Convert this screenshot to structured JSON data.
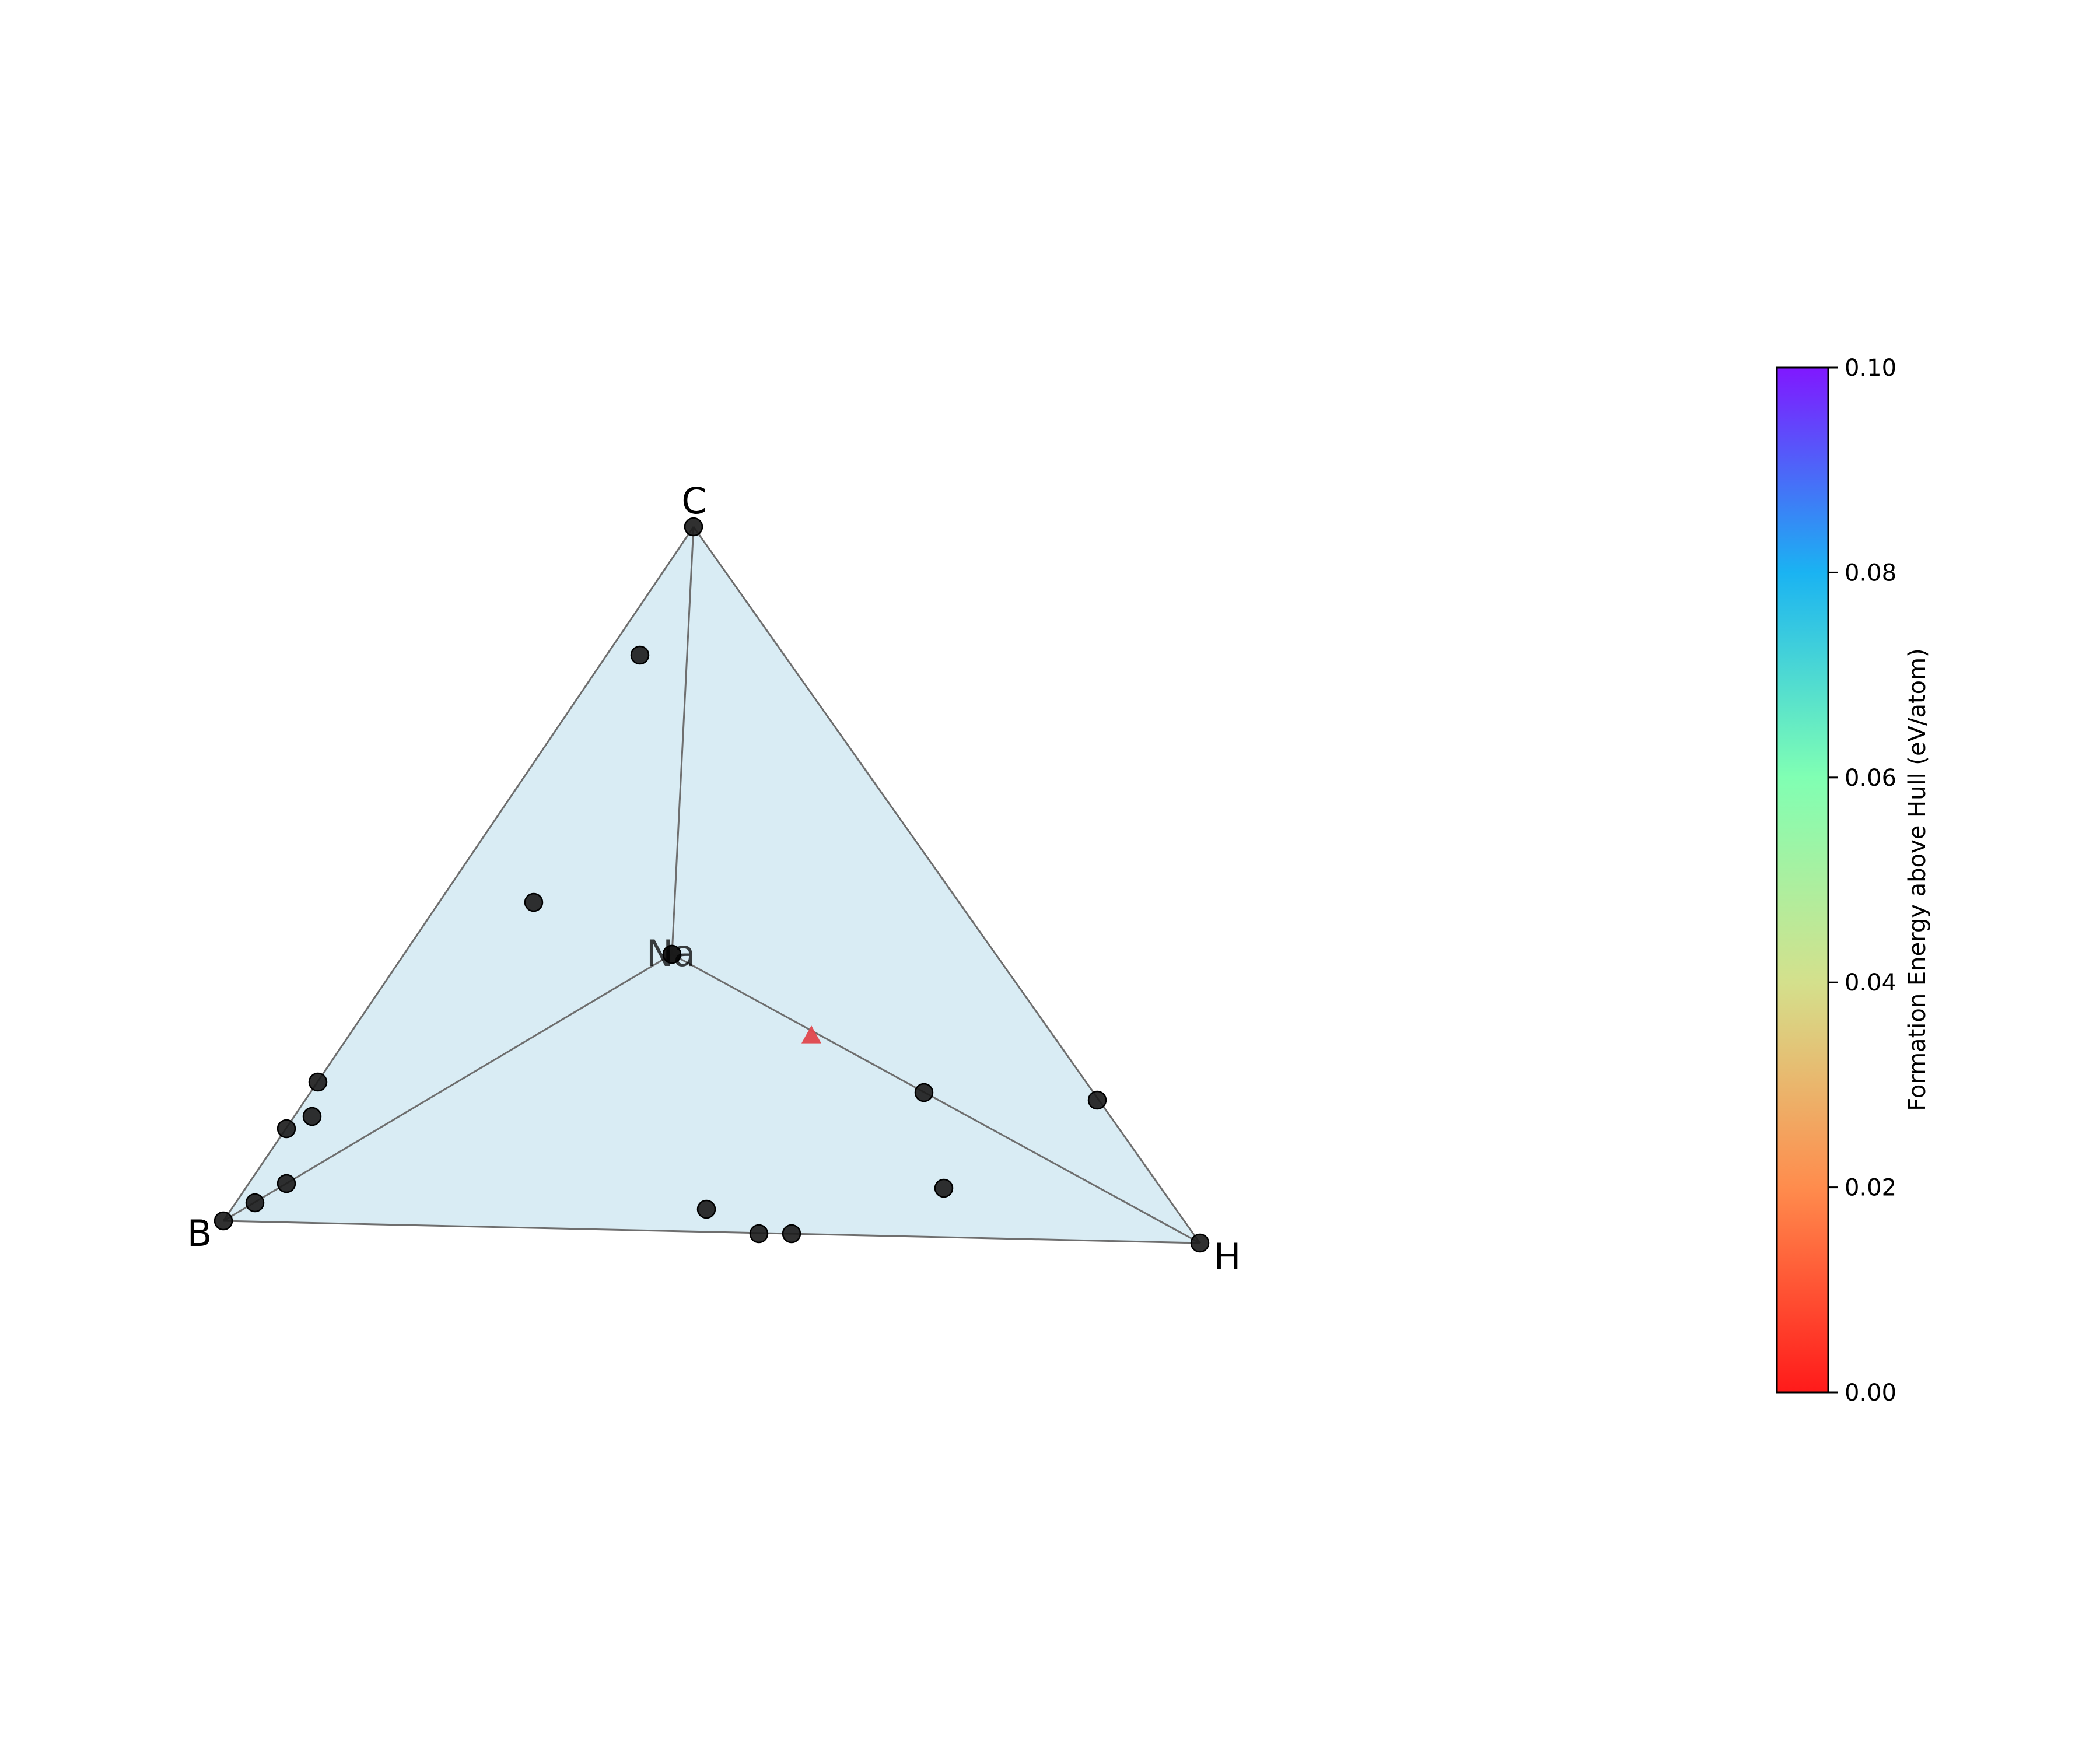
{
  "chart_data": {
    "type": "scatter",
    "subtype": "quaternary-phase-diagram-3d",
    "vertices": [
      "C",
      "B",
      "Na",
      "H"
    ],
    "facet_color": "#d9ecf4",
    "edge_color": "#6e6e6e",
    "stable_marker": "circle",
    "stable_color": "#1a1a1a",
    "unstable_marker": "triangle",
    "stable_entry_count": 18,
    "unstable_entry_count": 1,
    "unstable_entry_e_above_hull": 0.01,
    "colorbar": {
      "label": "Formation Energy above Hull (eV/atom)",
      "range": [
        0.0,
        0.1
      ],
      "ticks": [
        "0.00",
        "0.02",
        "0.04",
        "0.06",
        "0.08",
        "0.10"
      ],
      "colormap": "rainbow_r",
      "colors": [
        "#ff1a1a",
        "#ff8c4d",
        "#d4e08c",
        "#80ffb3",
        "#1ab3f2",
        "#8018ff"
      ]
    },
    "legend": "none",
    "grid": false
  }
}
